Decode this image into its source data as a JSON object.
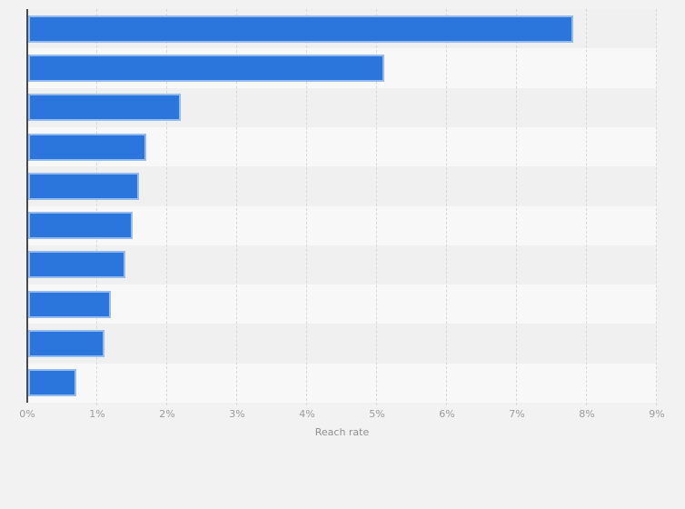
{
  "theme": {
    "page_bg": "#f2f2f3",
    "bar_color": "#2b76dd",
    "bar_border": "rgba(255,255,255,0.5)",
    "stripe_dark": "#f0f0f1",
    "stripe_light": "#f8f8f9",
    "axis_line_color": "#47494c",
    "gridline_color": "#d9d9d9",
    "tick_label_color": "#9b9b9b",
    "axis_title_color": "#8f8f8f"
  },
  "chart_data": {
    "type": "bar",
    "orientation": "horizontal",
    "title": "",
    "xlabel": "Reach rate",
    "ylabel": "",
    "unit": "%",
    "xlim": [
      0,
      9
    ],
    "xticks": [
      "0%",
      "1%",
      "2%",
      "3%",
      "4%",
      "5%",
      "6%",
      "7%",
      "8%",
      "9%"
    ],
    "grid": "vertical dashed gridlines",
    "legend": "none",
    "categories": [
      "",
      "",
      "",
      "",
      "",
      "",
      "",
      "",
      "",
      ""
    ],
    "values": [
      7.8,
      5.1,
      2.2,
      1.7,
      1.6,
      1.5,
      1.4,
      1.2,
      1.1,
      0.7
    ]
  }
}
